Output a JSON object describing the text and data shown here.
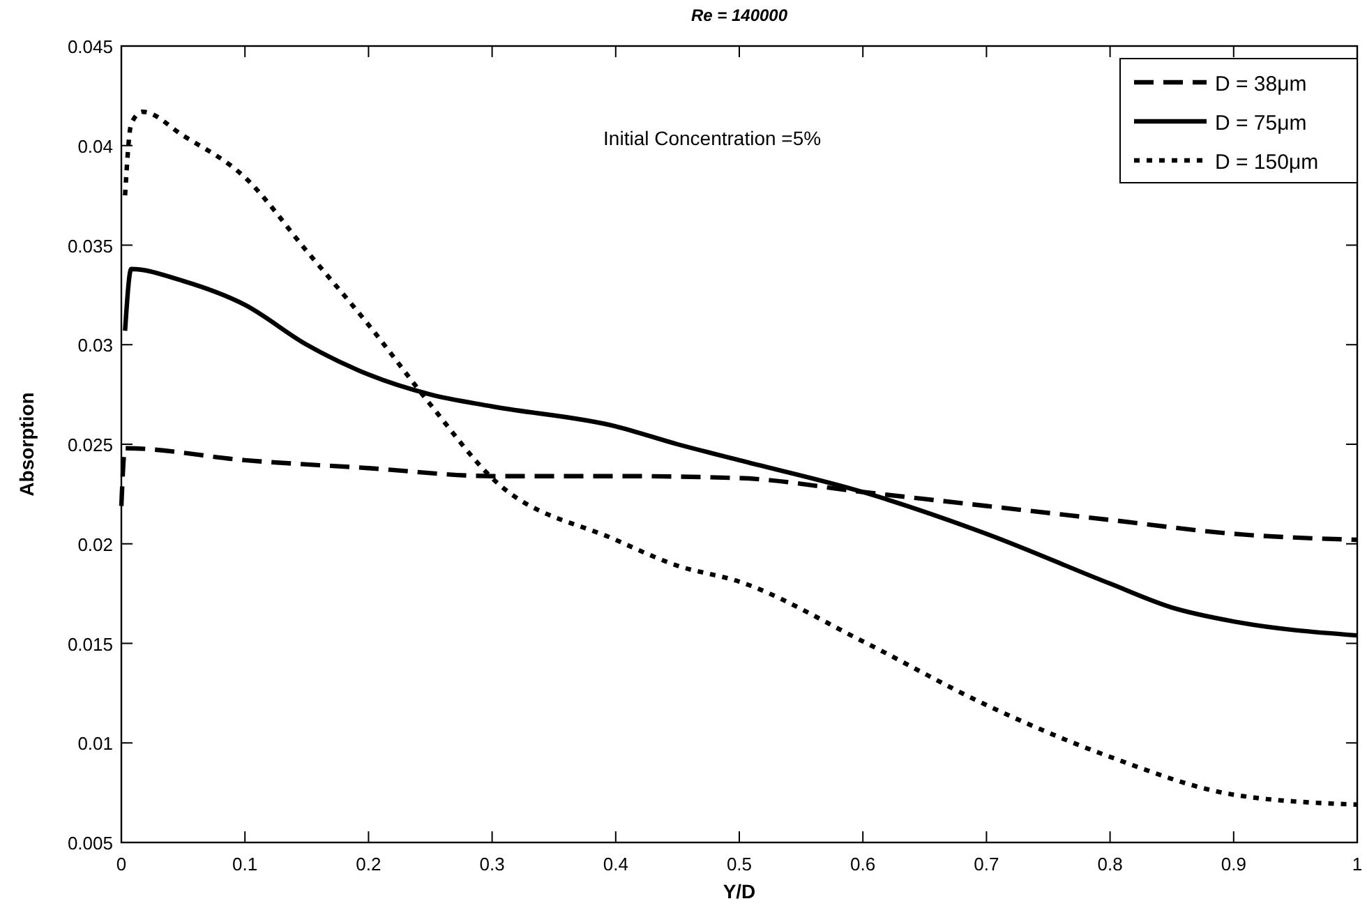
{
  "chart_data": {
    "type": "line",
    "title": "Re = 140000",
    "xlabel": "Y/D",
    "ylabel": "Absorption",
    "annotations": [
      "Initial Concentration =5%"
    ],
    "xlim": [
      0,
      1
    ],
    "ylim": [
      0.005,
      0.045
    ],
    "xticks": [
      0,
      0.1,
      0.2,
      0.3,
      0.4,
      0.5,
      0.6,
      0.7,
      0.8,
      0.9,
      1
    ],
    "yticks": [
      0.005,
      0.01,
      0.015,
      0.02,
      0.025,
      0.03,
      0.035,
      0.04,
      0.045
    ],
    "legend": "top right",
    "grid": false,
    "series": [
      {
        "name": "D = 38μm",
        "color": "#000000",
        "line_style": "dashed",
        "x": [
          0,
          0.003,
          0.1,
          0.2,
          0.3,
          0.4,
          0.5,
          0.6,
          0.7,
          0.8,
          0.9,
          1
        ],
        "values": [
          0.0219,
          0.0248,
          0.0242,
          0.0238,
          0.0234,
          0.0234,
          0.0233,
          0.0226,
          0.0219,
          0.0212,
          0.0205,
          0.0202
        ]
      },
      {
        "name": "D = 75μm",
        "color": "#000000",
        "line_style": "solid",
        "x": [
          0.003,
          0.008,
          0.05,
          0.1,
          0.15,
          0.2,
          0.25,
          0.3,
          0.4,
          0.45,
          0.5,
          0.6,
          0.7,
          0.8,
          0.85,
          0.9,
          1
        ],
        "values": [
          0.0307,
          0.0338,
          0.0332,
          0.032,
          0.03,
          0.0285,
          0.0275,
          0.0269,
          0.0259,
          0.025,
          0.0242,
          0.0226,
          0.0205,
          0.018,
          0.0168,
          0.0161,
          0.0154
        ]
      },
      {
        "name": "D = 150μm",
        "color": "#000000",
        "line_style": "dotted",
        "x": [
          0.003,
          0.008,
          0.017,
          0.05,
          0.1,
          0.15,
          0.2,
          0.25,
          0.3,
          0.4,
          0.45,
          0.5,
          0.6,
          0.7,
          0.8,
          0.9,
          1
        ],
        "values": [
          0.0375,
          0.0411,
          0.0417,
          0.0405,
          0.0384,
          0.0347,
          0.031,
          0.027,
          0.0233,
          0.0202,
          0.0189,
          0.0181,
          0.0151,
          0.0119,
          0.0093,
          0.0074,
          0.0069
        ]
      }
    ]
  }
}
